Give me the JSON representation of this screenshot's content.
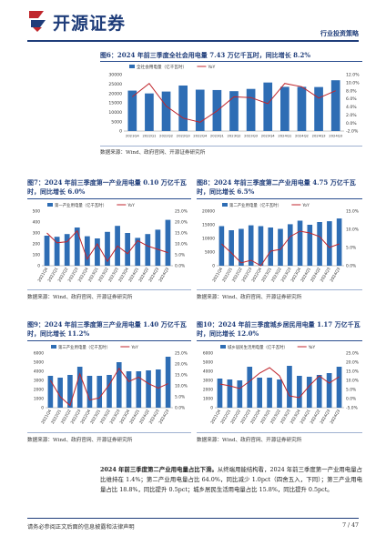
{
  "header": {
    "logo_text": "开源证券",
    "report_type": "行业投资策略"
  },
  "fig6": {
    "title": "图6：2024 年前三季度全社会用电量 7.43 万亿千瓦时，同比增长 8.2%",
    "source": "数据来源：Wind、政府官网、开源证券研究所"
  },
  "fig7": {
    "title": "图7：2024 年前三季度第一产业用电量 0.10 万亿千瓦时，同比增长 6.0%",
    "source": "数据来源：Wind、政府官网、开源证券研究所"
  },
  "fig8": {
    "title": "图8：2024 年前三季度第二产业用电量 4.75 万亿千瓦时，同比增长 6.5%",
    "source": "数据来源：Wind、政府官网、开源证券研究所"
  },
  "fig9": {
    "title": "图9：2024 年前三季度第三产业用电量 1.40 万亿千瓦时，同比增长 11.2%",
    "source": "数据来源：Wind、政府官网、开源证券研究所"
  },
  "fig10": {
    "title": "图10：2024 年前三季度城乡居民用电量 1.17 万亿千瓦时，同比增长 12.0%",
    "source": "数据来源：Wind、政府官网、开源证券研究所"
  },
  "body": {
    "lead": "2024 年前三季度第二产业用电量占比下滑。",
    "text": "从终端用能结构看，2024 年前三季度第一产业用电量占比维持在 1.4%；第二产业用电量占比 64.0%，同比减少 1.0pct（四舍五入，下同）；第三产业用电量占比 18.8%，同比提升 0.5pct；城乡居民生活用电量占比 15.8%，同比提升 0.5pct。"
  },
  "footer": {
    "disclaimer": "请务必参阅正文后面的信息披露和法律声明",
    "page": "7 / 47"
  },
  "colors": {
    "bar": "#2e6db4",
    "line": "#c0262c",
    "brand": "#1f3d7a"
  },
  "chart_data": [
    {
      "id": "fig6",
      "type": "bar",
      "series": [
        {
          "name": "全社会用电量（亿千瓦时）",
          "kind": "bar",
          "axis": "left",
          "values": [
            21500,
            20000,
            21000,
            24200,
            22000,
            21800,
            21200,
            22400,
            25800,
            23500,
            23500,
            23400,
            27000
          ]
        },
        {
          "name": "YoY",
          "kind": "line",
          "axis": "right",
          "values": [
            6.5,
            9.8,
            4.2,
            1.2,
            0.2,
            3.0,
            6.5,
            6.3,
            4.8,
            9.8,
            9.0,
            6.2,
            8.0
          ]
        }
      ],
      "categories": [
        "2021Q4",
        "2022Q1",
        "2022Q2",
        "2022Q3",
        "2022Q4",
        "2023Q1",
        "2023Q2",
        "2023Q3",
        "2023Q4",
        "2024Q1",
        "2024Q2",
        "2024Q3",
        "2024Q3"
      ],
      "ylim_left": [
        0,
        30000
      ],
      "yticks_left": [
        "0",
        "5000",
        "10000",
        "15000",
        "20000",
        "25000",
        "30000"
      ],
      "ylim_right": [
        -2,
        12
      ],
      "yticks_right": [
        "-2.0%",
        "0.0%",
        "2.0%",
        "4.0%",
        "6.0%",
        "8.0%",
        "10.0%",
        "12.0%"
      ],
      "legend": "top-left"
    },
    {
      "id": "fig7",
      "type": "bar",
      "series": [
        {
          "name": "第一产业用电量（亿千瓦时）",
          "kind": "bar",
          "axis": "left",
          "values": [
            275,
            265,
            290,
            350,
            270,
            250,
            310,
            365,
            300,
            255,
            290,
            330,
            420
          ]
        },
        {
          "name": "YoY",
          "kind": "line",
          "axis": "right",
          "values": [
            15.0,
            10.5,
            11.0,
            16.0,
            3.0,
            10.0,
            2.0,
            9.0,
            5.5,
            11.5,
            9.0,
            7.5,
            6.0
          ]
        }
      ],
      "categories": [
        "2021Q4",
        "2022Q1",
        "2022Q2",
        "2022Q3",
        "2022Q4",
        "2023Q1",
        "2023Q2",
        "2023Q3",
        "2023Q4",
        "2024Q1",
        "2024Q2",
        "2024Q3",
        "2024Q3"
      ],
      "ylim_left": [
        0,
        500
      ],
      "yticks_left": [
        "0",
        "100",
        "200",
        "300",
        "400",
        "500"
      ],
      "ylim_right": [
        0,
        25
      ],
      "yticks_right": [
        "0.0%",
        "5.0%",
        "10.0%",
        "15.0%",
        "20.0%",
        "25.0%"
      ],
      "legend": "top-left"
    },
    {
      "id": "fig8",
      "type": "bar",
      "series": [
        {
          "name": "第二产业用电量（亿千瓦时）",
          "kind": "bar",
          "axis": "left",
          "values": [
            14500,
            13000,
            13500,
            14800,
            14500,
            14000,
            13500,
            15200,
            16500,
            15000,
            16000,
            16300,
            17300
          ]
        },
        {
          "name": "YoY",
          "kind": "line",
          "axis": "right",
          "values": [
            6.0,
            3.5,
            0.8,
            1.5,
            0.0,
            4.0,
            4.5,
            8.0,
            9.5,
            9.0,
            8.0,
            5.0,
            6.0
          ]
        }
      ],
      "categories": [
        "2021Q4",
        "2022Q1",
        "2022Q2",
        "2022Q3",
        "2022Q4",
        "2023Q1",
        "2023Q2",
        "2023Q3",
        "2023Q4",
        "2024Q1",
        "2024Q2",
        "2024Q3",
        "2024Q3"
      ],
      "ylim_left": [
        0,
        20000
      ],
      "yticks_left": [
        "0",
        "5000",
        "10000",
        "15000",
        "20000"
      ],
      "ylim_right": [
        0,
        15
      ],
      "yticks_right": [
        "0.0%",
        "5.0%",
        "10.0%",
        "15.0%"
      ],
      "legend": "top-left"
    },
    {
      "id": "fig9",
      "type": "bar",
      "series": [
        {
          "name": "第三产业用电量（亿千瓦时）",
          "kind": "bar",
          "axis": "left",
          "values": [
            3500,
            3300,
            3600,
            4500,
            3500,
            3500,
            3600,
            5000,
            4000,
            4000,
            4100,
            4200,
            5600
          ]
        },
        {
          "name": "YoY",
          "kind": "line",
          "axis": "right",
          "values": [
            12.5,
            5.0,
            1.0,
            15.5,
            3.5,
            4.5,
            10.5,
            18.0,
            12.0,
            14.0,
            11.0,
            9.0,
            11.0
          ]
        }
      ],
      "categories": [
        "2021Q4",
        "2022Q1",
        "2022Q2",
        "2022Q3",
        "2022Q4",
        "2023Q1",
        "2023Q2",
        "2023Q3",
        "2023Q4",
        "2024Q1",
        "2024Q2",
        "2024Q3",
        "2024Q3"
      ],
      "ylim_left": [
        0,
        6000
      ],
      "yticks_left": [
        "0",
        "1000",
        "2000",
        "3000",
        "4000",
        "5000",
        "6000"
      ],
      "ylim_right": [
        0,
        25
      ],
      "yticks_right": [
        "0.0%",
        "5.0%",
        "10.0%",
        "15.0%",
        "20.0%",
        "25.0%"
      ],
      "legend": "top-left"
    },
    {
      "id": "fig10",
      "type": "bar",
      "series": [
        {
          "name": "城乡居民生活用电量（亿千瓦时）",
          "kind": "bar",
          "axis": "left",
          "values": [
            3200,
            3100,
            3000,
            4500,
            3300,
            3300,
            3100,
            4600,
            3500,
            3400,
            3600,
            3800,
            4500
          ]
        },
        {
          "name": "YoY",
          "kind": "line",
          "axis": "right",
          "values": [
            8.0,
            7.0,
            5.5,
            9.5,
            14.0,
            17.0,
            12.5,
            1.5,
            0.5,
            7.0,
            12.5,
            8.5,
            12.0
          ]
        }
      ],
      "categories": [
        "2021Q4",
        "2022Q1",
        "2022Q2",
        "2022Q3",
        "2022Q4",
        "2023Q1",
        "2023Q2",
        "2023Q3",
        "2023Q4",
        "2024Q1",
        "2024Q2",
        "2024Q3",
        "2024Q3"
      ],
      "ylim_left": [
        0,
        6000
      ],
      "yticks_left": [
        "0",
        "1000",
        "2000",
        "3000",
        "4000",
        "5000",
        "6000"
      ],
      "ylim_right": [
        -5,
        25
      ],
      "yticks_right": [
        "-5.0%",
        "0.0%",
        "5.0%",
        "10.0%",
        "15.0%",
        "20.0%",
        "25.0%"
      ],
      "legend": "top-left"
    }
  ]
}
